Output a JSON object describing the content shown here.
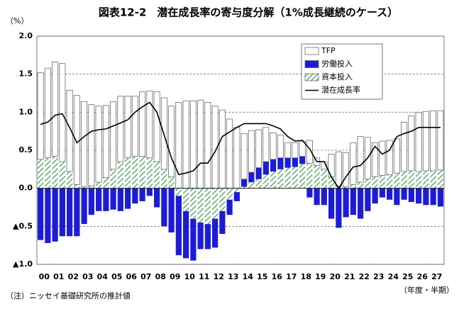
{
  "chart_data": {
    "type": "stacked-bar-line",
    "title": "図表12-2　潜在成長率の寄与度分解（1%成長継続のケース）",
    "y_label": "（%）",
    "x_label": "（年度・半期）",
    "note": "（注）ニッセイ基礎研究所の推計値",
    "categories": [
      "00",
      null,
      "01",
      null,
      "02",
      null,
      "03",
      null,
      "04",
      null,
      "05",
      null,
      "06",
      null,
      "07",
      null,
      "08",
      null,
      "09",
      null,
      "10",
      null,
      "11",
      null,
      "12",
      null,
      "13",
      null,
      "14",
      null,
      "15",
      null,
      "16",
      null,
      "17",
      null,
      "18",
      null,
      "19",
      null,
      "20",
      null,
      "21",
      null,
      "22",
      null,
      "23",
      null,
      "24",
      null,
      "25",
      null,
      "26",
      null,
      "27",
      null
    ],
    "series": [
      {
        "name": "TFP",
        "color": "#ffffff",
        "kind": "bar",
        "values": [
          1.14,
          1.18,
          1.24,
          1.29,
          1.07,
          1.17,
          1.12,
          1.07,
          1.0,
          0.95,
          0.89,
          0.86,
          0.81,
          0.79,
          0.85,
          0.88,
          0.92,
          0.94,
          0.93,
          1.13,
          1.15,
          1.15,
          1.16,
          1.13,
          1.08,
          1.03,
          0.91,
          0.8,
          0.6,
          0.55,
          0.5,
          0.45,
          0.35,
          0.3,
          0.2,
          0.2,
          0.2,
          0.3,
          0.1,
          0.1,
          0.3,
          0.45,
          0.45,
          0.55,
          0.6,
          0.55,
          0.45,
          0.45,
          0.45,
          0.45,
          0.65,
          0.72,
          0.78,
          0.78,
          0.79,
          0.78
        ]
      },
      {
        "name": "労働投入",
        "color": "#1c1cd6",
        "kind": "bar",
        "values": [
          -0.68,
          -0.72,
          -0.7,
          -0.63,
          -0.63,
          -0.63,
          -0.47,
          -0.35,
          -0.3,
          -0.3,
          -0.28,
          -0.3,
          -0.27,
          -0.2,
          -0.17,
          -0.1,
          -0.25,
          -0.5,
          -0.58,
          -0.78,
          -0.62,
          -0.55,
          -0.35,
          -0.33,
          -0.38,
          -0.3,
          -0.2,
          -0.12,
          0.1,
          0.13,
          0.15,
          0.17,
          0.16,
          0.15,
          0.13,
          0.12,
          0.1,
          -0.12,
          -0.22,
          -0.22,
          -0.4,
          -0.52,
          -0.38,
          -0.35,
          -0.4,
          -0.3,
          -0.2,
          -0.12,
          -0.15,
          -0.22,
          -0.15,
          -0.18,
          -0.2,
          -0.22,
          -0.22,
          -0.24
        ]
      },
      {
        "name": "資本投入",
        "color": "#3c9a4c",
        "kind": "hatched-bar",
        "values": [
          0.38,
          0.4,
          0.42,
          0.35,
          0.22,
          0.05,
          0.02,
          0.03,
          0.08,
          0.14,
          0.25,
          0.35,
          0.4,
          0.42,
          0.42,
          0.4,
          0.35,
          0.25,
          0.15,
          -0.1,
          -0.3,
          -0.4,
          -0.45,
          -0.47,
          -0.4,
          -0.3,
          -0.15,
          -0.05,
          0.02,
          0.08,
          0.12,
          0.18,
          0.22,
          0.25,
          0.27,
          0.28,
          0.32,
          0.33,
          0.3,
          0.25,
          0.15,
          0.03,
          0.02,
          0.05,
          0.08,
          0.12,
          0.15,
          0.17,
          0.18,
          0.2,
          0.22,
          0.23,
          0.22,
          0.23,
          0.23,
          0.24
        ]
      },
      {
        "name": "潜在成長率",
        "color": "#000000",
        "kind": "line",
        "values": [
          0.84,
          0.87,
          0.96,
          0.98,
          0.8,
          0.6,
          0.68,
          0.75,
          0.77,
          0.78,
          0.82,
          0.86,
          0.9,
          1.0,
          1.07,
          1.13,
          1.0,
          0.7,
          0.4,
          0.18,
          0.2,
          0.23,
          0.33,
          0.33,
          0.48,
          0.68,
          0.74,
          0.8,
          0.85,
          0.85,
          0.85,
          0.85,
          0.82,
          0.78,
          0.68,
          0.62,
          0.63,
          0.52,
          0.35,
          0.35,
          0.15,
          0.0,
          0.15,
          0.28,
          0.3,
          0.4,
          0.55,
          0.45,
          0.5,
          0.68,
          0.72,
          0.75,
          0.8,
          0.8,
          0.8,
          0.8
        ]
      }
    ],
    "ylim": [
      -1.0,
      2.0
    ],
    "yticks": [
      {
        "value": 2.0,
        "label": "2.0"
      },
      {
        "value": 1.5,
        "label": "1.5"
      },
      {
        "value": 1.0,
        "label": "1.0"
      },
      {
        "value": 0.5,
        "label": "0.5"
      },
      {
        "value": 0.0,
        "label": "0.0"
      },
      {
        "value": -0.5,
        "label": "▲0.5"
      },
      {
        "value": -1.0,
        "label": "▲1.0"
      }
    ],
    "grid": true
  }
}
